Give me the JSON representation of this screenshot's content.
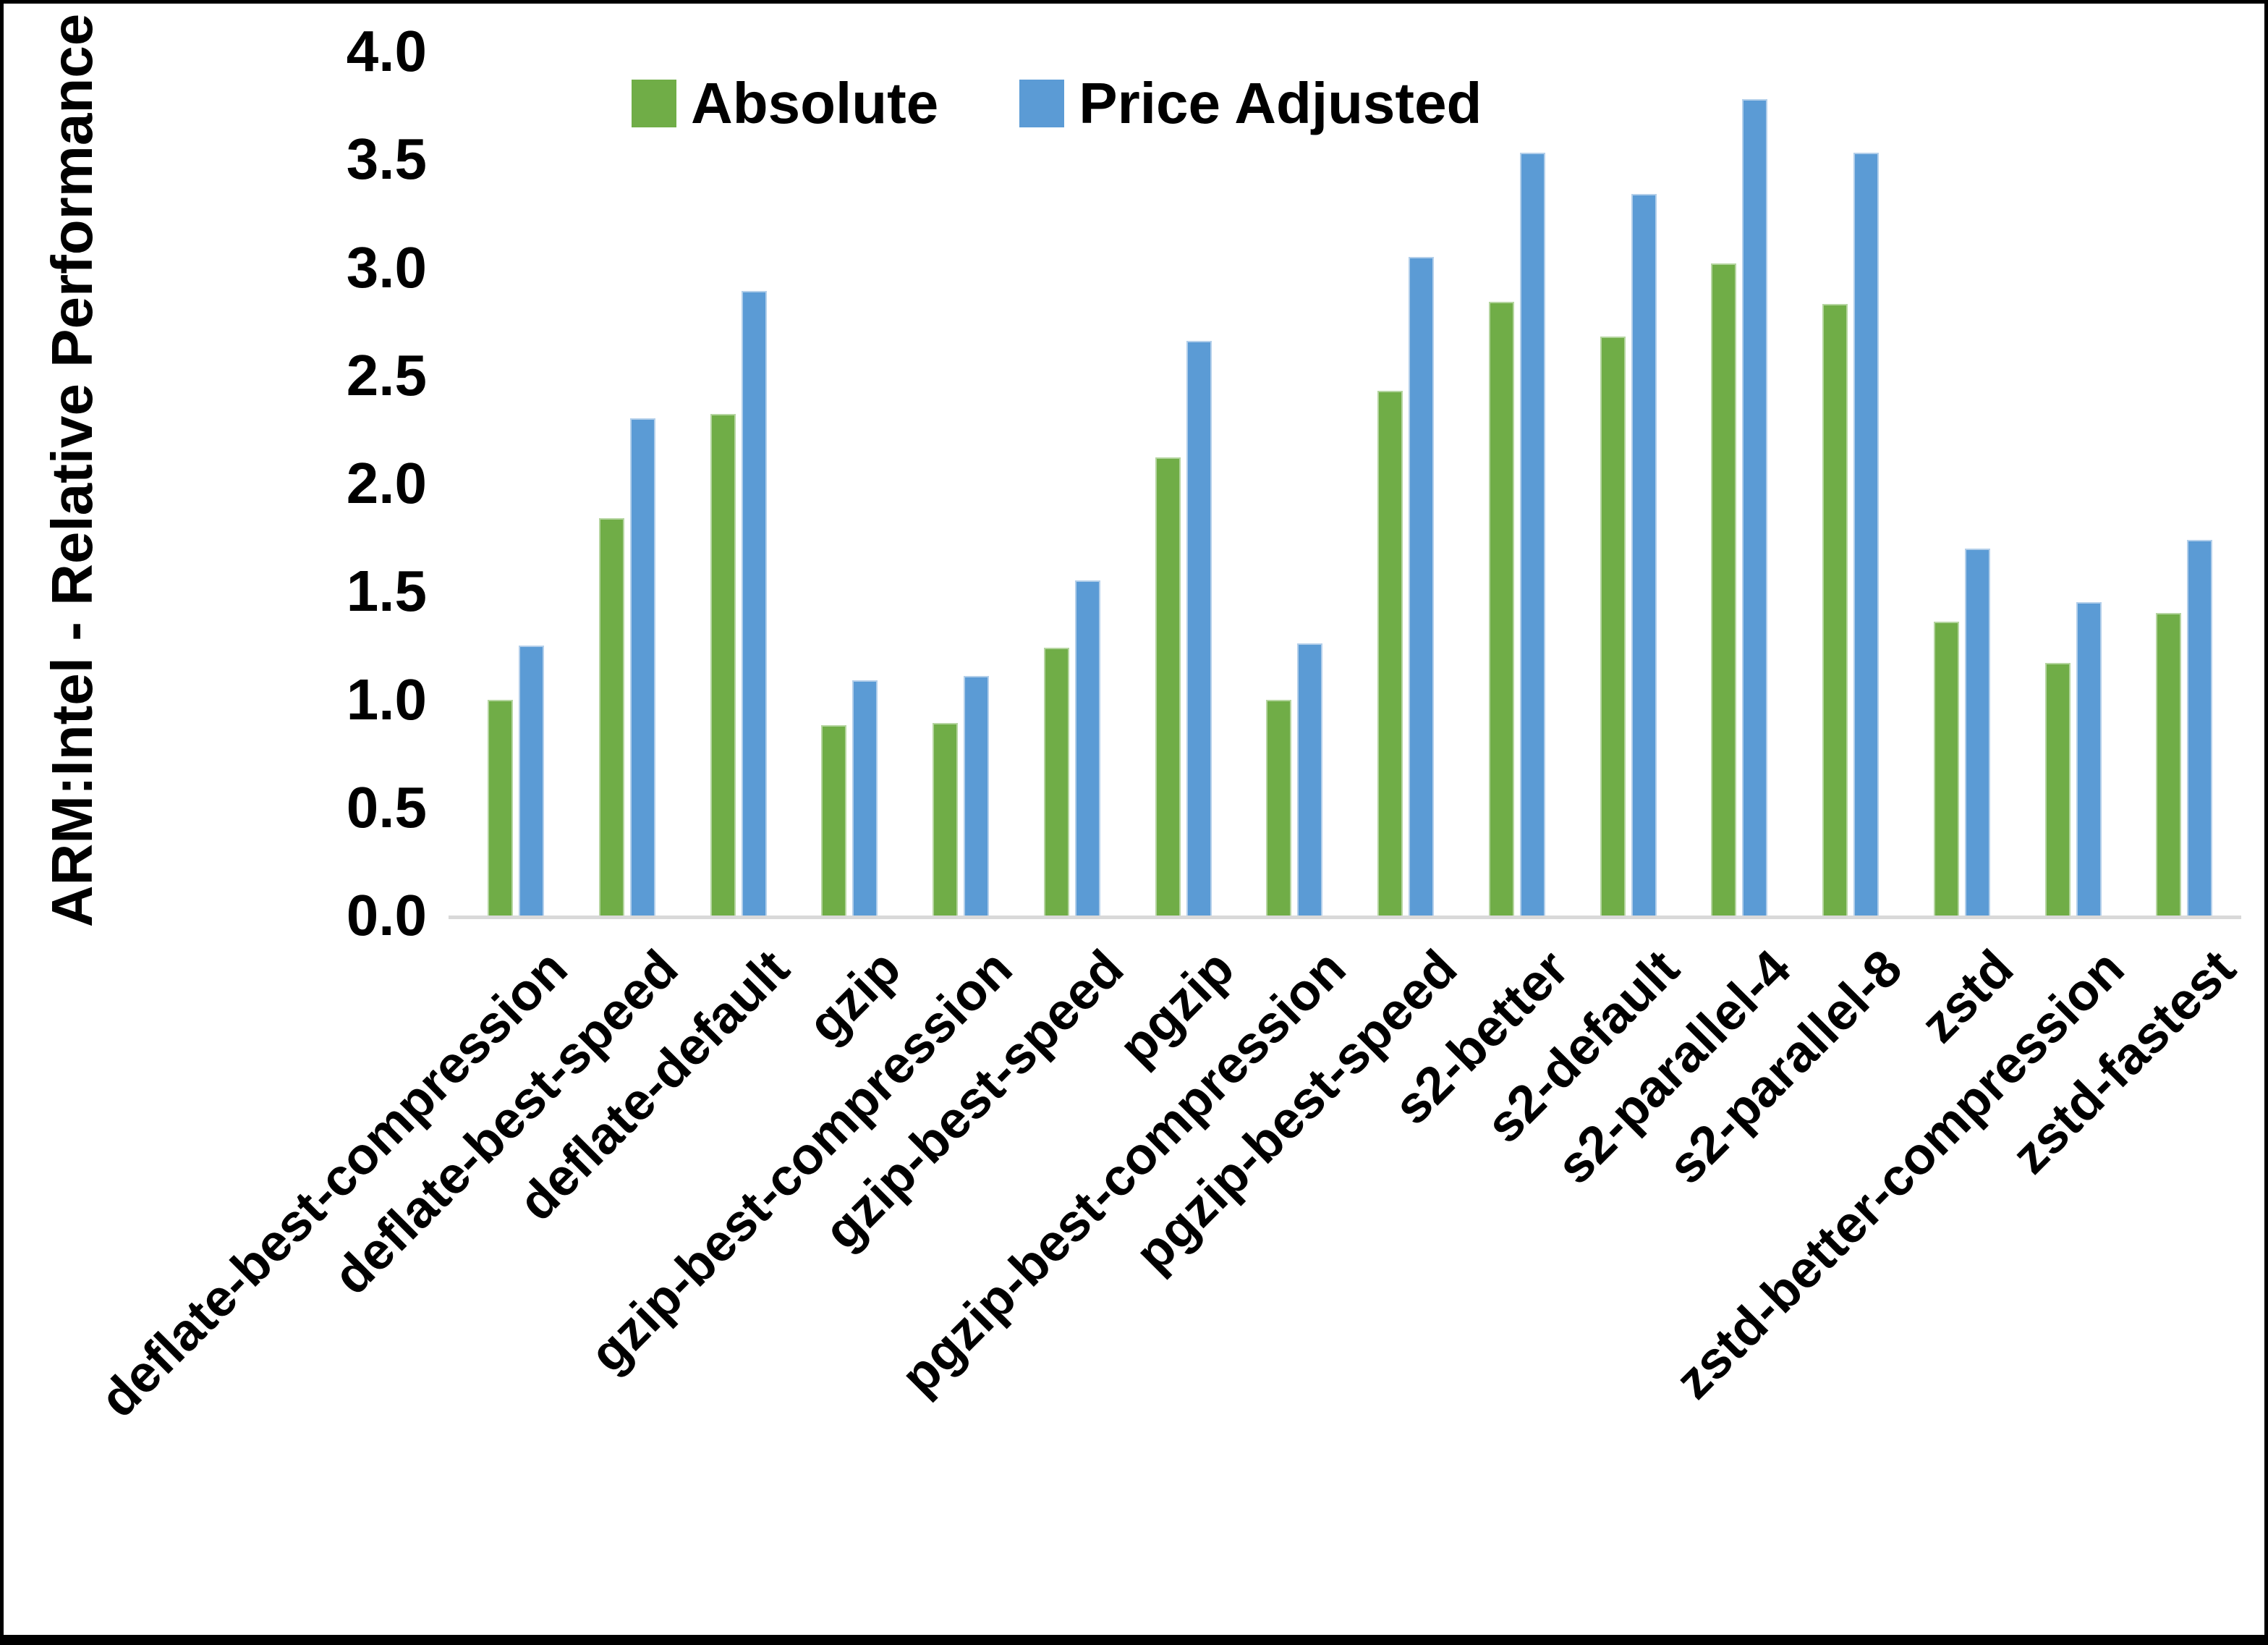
{
  "chart_data": {
    "type": "bar",
    "title": "",
    "xlabel": "",
    "ylabel": "ARM:Intel - Relative Performance",
    "ylim": [
      0.0,
      4.0
    ],
    "ytick_step": 0.5,
    "yticks": [
      "0.0",
      "0.5",
      "1.0",
      "1.5",
      "2.0",
      "2.5",
      "3.0",
      "3.5",
      "4.0"
    ],
    "grid": false,
    "legend_position": "top",
    "categories": [
      "deflate-best-compression",
      "deflate-best-speed",
      "deflate-default",
      "gzip",
      "gzip-best-compression",
      "gzip-best-speed",
      "pgzip",
      "pgzip-best-compression",
      "pgzip-best-speed",
      "s2-better",
      "s2-default",
      "s2-parallel-4",
      "s2-parallel-8",
      "zstd",
      "zstd-better-compression",
      "zstd-fastest"
    ],
    "series": [
      {
        "name": "Absolute",
        "color": "#70AD47",
        "edge_color": "#b5d5a0",
        "values": [
          1.0,
          1.84,
          2.32,
          0.88,
          0.89,
          1.24,
          2.12,
          1.0,
          2.43,
          2.84,
          2.68,
          3.02,
          2.83,
          1.36,
          1.17,
          1.4
        ]
      },
      {
        "name": "Price Adjusted",
        "color": "#5B9BD5",
        "edge_color": "#b3cfea",
        "values": [
          1.25,
          2.3,
          2.89,
          1.09,
          1.11,
          1.55,
          2.66,
          1.26,
          3.05,
          3.53,
          3.34,
          3.78,
          3.53,
          1.7,
          1.45,
          1.74
        ]
      }
    ]
  },
  "colors": {
    "background": "#FFFFFF",
    "axis_line": "#D9D9D9",
    "text": "#000000",
    "frame_border": "#000000"
  }
}
